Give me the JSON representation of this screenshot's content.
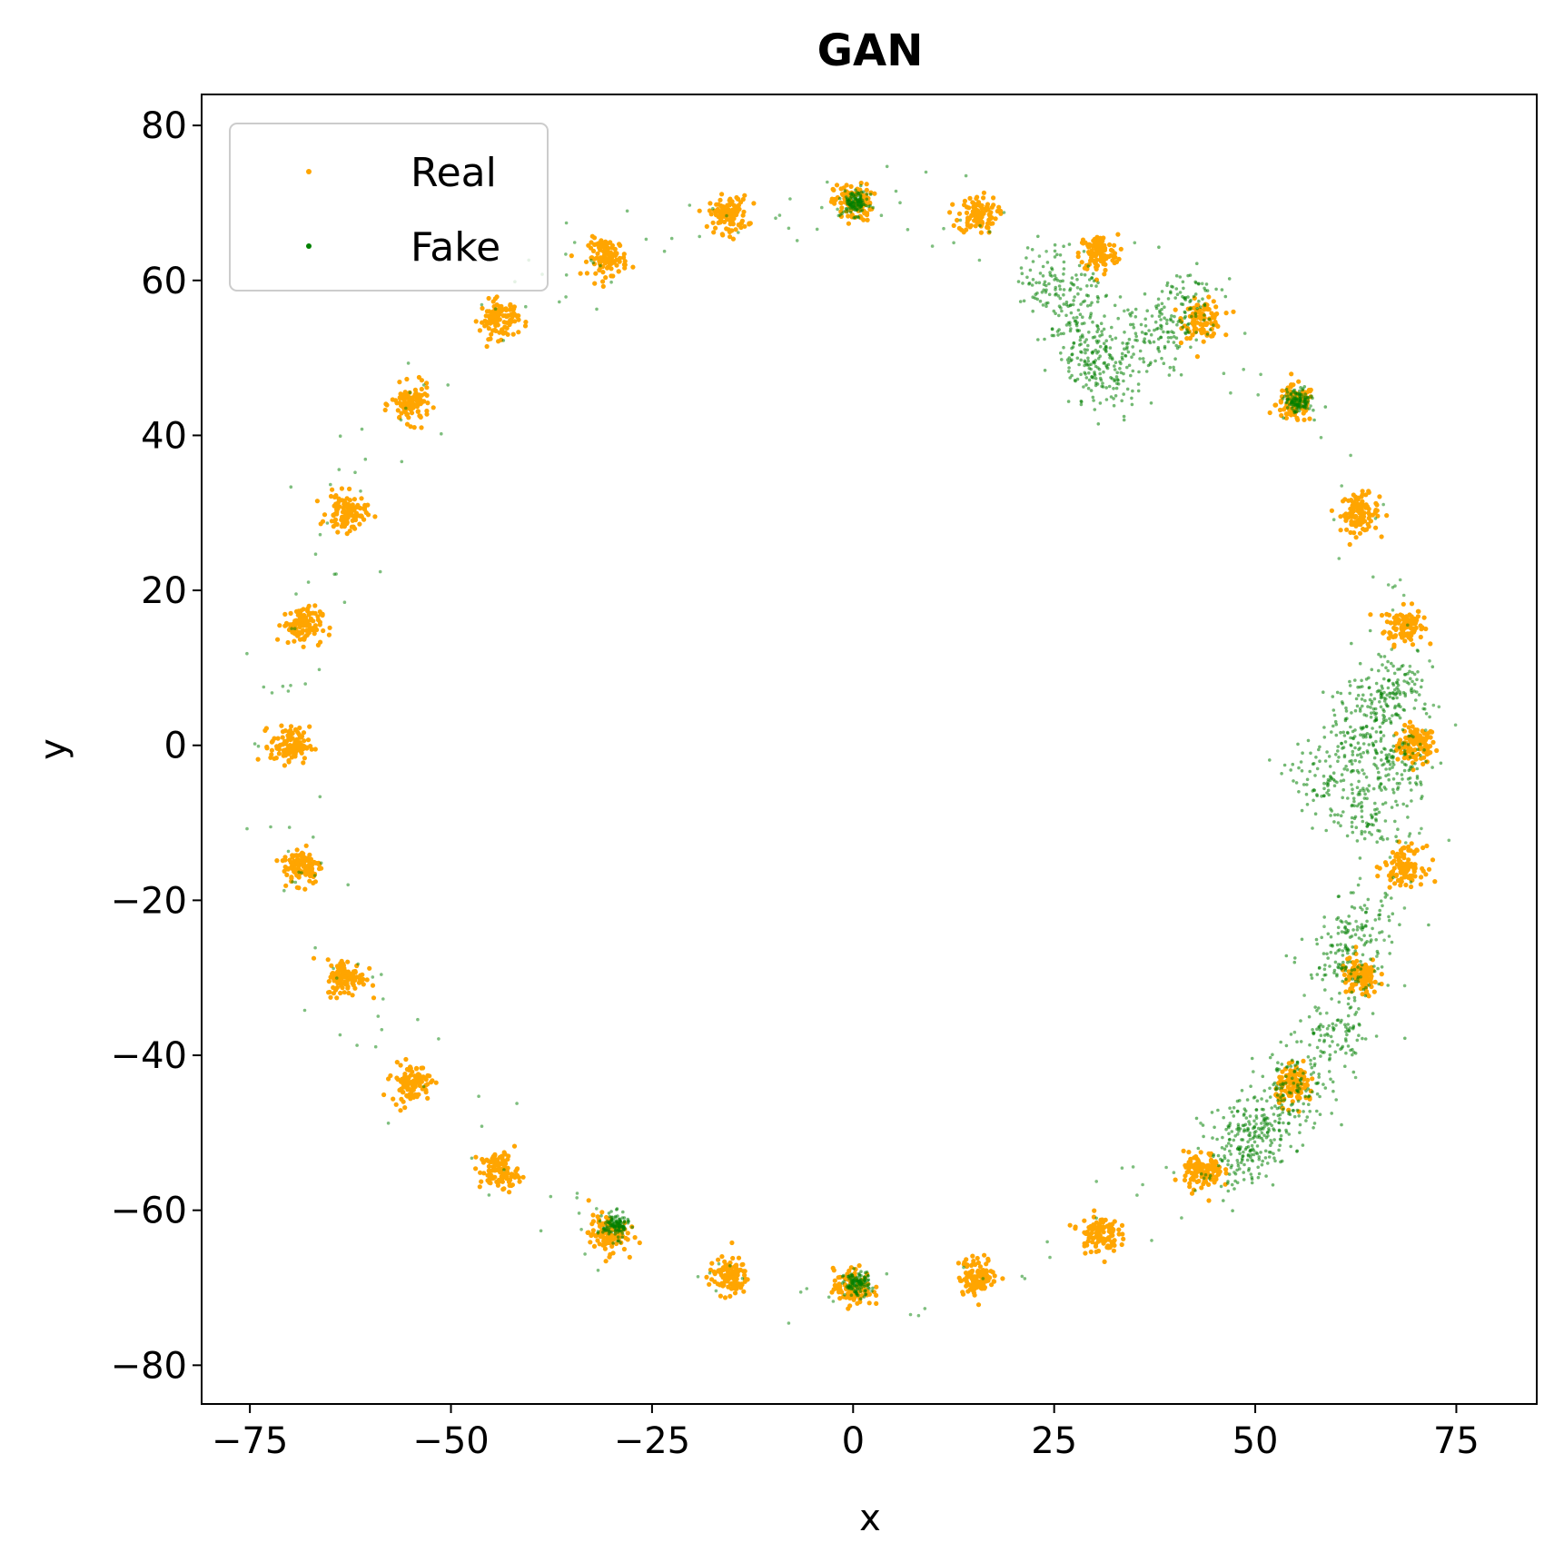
{
  "chart_data": {
    "type": "scatter",
    "title": "GAN",
    "xlabel": "x",
    "ylabel": "y",
    "xlim": [
      -81,
      85
    ],
    "ylim": [
      -85,
      84
    ],
    "xticks": [
      -75,
      -50,
      -25,
      0,
      25,
      50,
      75
    ],
    "xtick_labels": [
      "−75",
      "−50",
      "−25",
      "0",
      "25",
      "50",
      "75"
    ],
    "yticks": [
      -80,
      -60,
      -40,
      -20,
      0,
      20,
      40,
      60,
      80
    ],
    "ytick_labels": [
      "−80",
      "−60",
      "−40",
      "−20",
      "0",
      "20",
      "40",
      "60",
      "80"
    ],
    "grid": false,
    "legend_position": "top-left",
    "series": [
      {
        "name": "Real",
        "color": "#ffa500",
        "points": [
          [
            70,
            0
          ],
          [
            68.5,
            15.5
          ],
          [
            63,
            30
          ],
          [
            55,
            44
          ],
          [
            43.5,
            55
          ],
          [
            30.5,
            63.5
          ],
          [
            15.5,
            68.5
          ],
          [
            0,
            70
          ],
          [
            -15.5,
            68.5
          ],
          [
            -30.5,
            63
          ],
          [
            -44,
            55
          ],
          [
            -55,
            44
          ],
          [
            -63,
            30
          ],
          [
            -68.5,
            15.5
          ],
          [
            -70,
            0
          ],
          [
            -68.5,
            -15.5
          ],
          [
            -63,
            -30
          ],
          [
            -55,
            -43.5
          ],
          [
            -44,
            -55
          ],
          [
            -30.5,
            -63
          ],
          [
            -15.5,
            -68.5
          ],
          [
            0,
            -70
          ],
          [
            15.5,
            -68.5
          ],
          [
            30.5,
            -63
          ],
          [
            43.5,
            -55
          ],
          [
            55,
            -44
          ],
          [
            63,
            -30
          ],
          [
            68.5,
            -15.5
          ]
        ]
      },
      {
        "name": "Fake",
        "color": "#008000",
        "points": [
          [
            0.3,
            70
          ],
          [
            55.3,
            44.4
          ],
          [
            -29.5,
            -62
          ],
          [
            0.5,
            -69.5
          ],
          [
            28,
            55
          ],
          [
            30,
            50
          ],
          [
            32,
            48
          ],
          [
            25,
            60
          ],
          [
            37,
            53
          ],
          [
            41,
            57
          ],
          [
            62,
            0
          ],
          [
            66,
            5
          ],
          [
            68,
            -3
          ],
          [
            67,
            8
          ],
          [
            64,
            -9
          ],
          [
            59,
            -4
          ],
          [
            63,
            -24
          ],
          [
            61,
            -29
          ],
          [
            60,
            -38
          ],
          [
            55,
            -44
          ],
          [
            52,
            -48
          ],
          [
            50,
            -51
          ],
          [
            48,
            -53
          ]
        ]
      }
    ]
  }
}
